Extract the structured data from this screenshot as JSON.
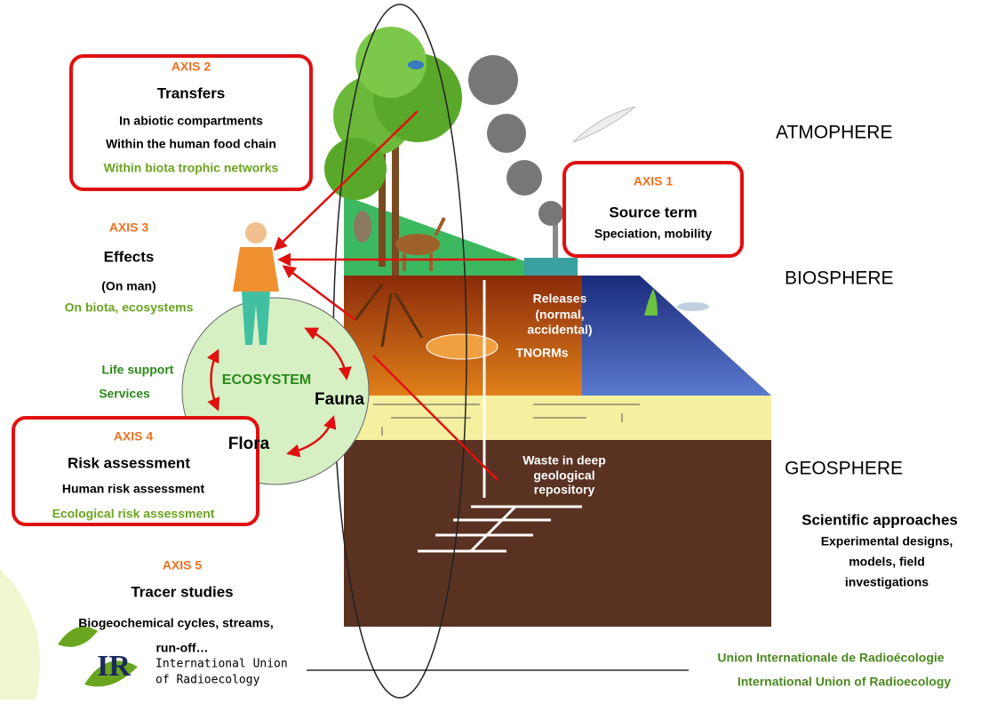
{
  "axes": [
    {
      "label": "AXIS 2",
      "title": "Transfers",
      "lines": [
        "In abiotic compartments",
        "Within the human food chain",
        "Within biota trophic networks"
      ]
    },
    {
      "label": "AXIS 1",
      "title": "Source term",
      "lines": [
        "Speciation, mobility"
      ]
    },
    {
      "label": "AXIS 3",
      "title": "Effects",
      "lines": [
        "(On man)",
        "On biota,  ecosystems"
      ]
    },
    {
      "label": "AXIS 4",
      "title": "Risk assessment",
      "lines": [
        "Human risk assessment",
        "Ecological risk assessment"
      ]
    },
    {
      "label": "AXIS 5",
      "title": "Tracer studies",
      "lines": [
        "Biogeochemical cycles, streams,",
        "run-off…"
      ]
    }
  ],
  "layers": [
    "ATMOPHERE",
    "BIOSPHERE",
    "GEOSPHERE"
  ],
  "ecosystem": {
    "label": "ECOSYSTEM",
    "fauna": "Fauna",
    "flora": "Flora",
    "services": [
      "Life support",
      "Services"
    ]
  },
  "underground": {
    "releases": [
      "Releases",
      "(normal,",
      "accidental)"
    ],
    "tnorms": "TNORMs",
    "waste": [
      "Waste in deep",
      "geological",
      "repository"
    ]
  },
  "scientific": {
    "title": "Scientific approaches",
    "lines": [
      "Experimental designs,",
      "models, field",
      "investigations"
    ]
  },
  "logo": {
    "mark": "IR",
    "lines": [
      "International Union",
      "of Radioecology"
    ]
  },
  "footer": [
    "Union Internationale de Radioécologie",
    "International Union of Radioecology"
  ]
}
